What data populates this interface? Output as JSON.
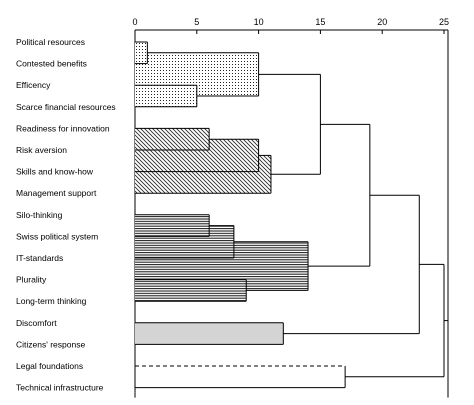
{
  "chart_data": {
    "type": "dendrogram",
    "orientation": "horizontal",
    "title": "",
    "xlabel": "",
    "ylabel": "",
    "xlim": [
      0,
      25
    ],
    "x_ticks": [
      0,
      5,
      10,
      15,
      20,
      25
    ],
    "leaves": [
      "Political resources",
      "Contested benefits",
      "Efficency",
      "Scarce financial resources",
      "Readiness for innovation",
      "Risk aversion",
      "Skills and know-how",
      "Management support",
      "Silo-thinking",
      "Swiss political system",
      "IT-standards",
      "Plurality",
      "Long-term thinking",
      "Discomfort",
      "Citizens' response",
      "Legal foundations",
      "Technical infrastructure"
    ],
    "clusters": [
      {
        "id": "A1",
        "children": [
          0,
          1
        ],
        "height": 1,
        "pattern": "dots"
      },
      {
        "id": "A2",
        "children": [
          2,
          3
        ],
        "height": 5,
        "pattern": "dots"
      },
      {
        "id": "A",
        "children": [
          "A1",
          "A2"
        ],
        "height": 10,
        "pattern": "dots"
      },
      {
        "id": "B1",
        "children": [
          4,
          5
        ],
        "height": 6,
        "pattern": "diagonal"
      },
      {
        "id": "B2",
        "children": [
          "B1",
          6
        ],
        "height": 10,
        "pattern": "diagonal"
      },
      {
        "id": "B",
        "children": [
          "B2",
          7
        ],
        "height": 11,
        "pattern": "diagonal"
      },
      {
        "id": "C1",
        "children": [
          8,
          9
        ],
        "height": 6,
        "pattern": "horizontal"
      },
      {
        "id": "C2",
        "children": [
          "C1",
          10
        ],
        "height": 8,
        "pattern": "horizontal"
      },
      {
        "id": "C3",
        "children": [
          11,
          12
        ],
        "height": 9,
        "pattern": "horizontal"
      },
      {
        "id": "C",
        "children": [
          "C2",
          "C3"
        ],
        "height": 14,
        "pattern": "horizontal"
      },
      {
        "id": "AB",
        "children": [
          "A",
          "B"
        ],
        "height": 15
      },
      {
        "id": "ABC",
        "children": [
          "AB",
          "C"
        ],
        "height": 19
      },
      {
        "id": "D",
        "children": [
          13,
          14
        ],
        "height": 12,
        "pattern": "gray"
      },
      {
        "id": "ABCD",
        "children": [
          "ABC",
          "D"
        ],
        "height": 23
      },
      {
        "id": "E",
        "children": [
          15,
          16
        ],
        "height": 17,
        "pattern": "dashed"
      },
      {
        "id": "ALL",
        "children": [
          "ABCD",
          "E"
        ],
        "height": 25
      }
    ]
  }
}
